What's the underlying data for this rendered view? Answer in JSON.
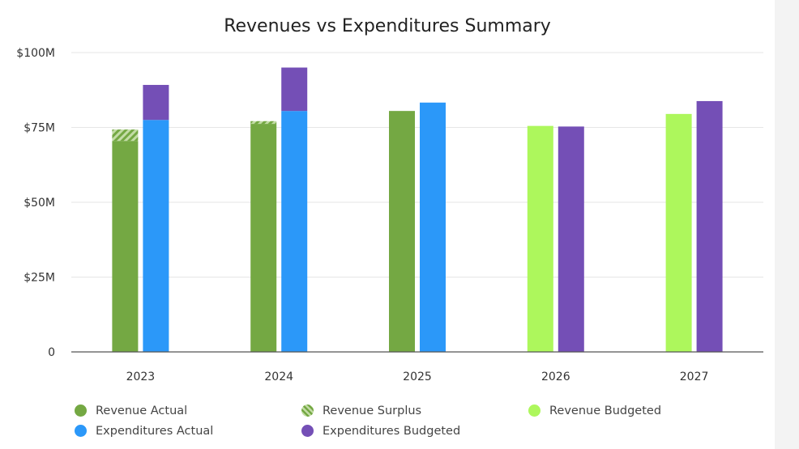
{
  "chart_data": {
    "type": "bar",
    "title": "Revenues vs Expenditures Summary",
    "xlabel": "",
    "ylabel": "",
    "ylim": [
      0,
      100000000
    ],
    "yticks": [
      {
        "value": 0,
        "label": "0"
      },
      {
        "value": 25000000,
        "label": "$25M"
      },
      {
        "value": 50000000,
        "label": "$50M"
      },
      {
        "value": 75000000,
        "label": "$75M"
      },
      {
        "value": 100000000,
        "label": "$100M"
      }
    ],
    "categories": [
      "2023",
      "2024",
      "2025",
      "2026",
      "2027"
    ],
    "grid": true,
    "legend_position": "bottom",
    "stacked_groups": true,
    "series": [
      {
        "name": "Revenue Actual",
        "color": "#74a843",
        "group": "revenue",
        "values": [
          70500000,
          76200000,
          80500000,
          null,
          null
        ]
      },
      {
        "name": "Revenue Surplus",
        "color": "#74a843",
        "pattern": "hatch",
        "group": "revenue",
        "values": [
          3800000,
          900000,
          null,
          null,
          null
        ]
      },
      {
        "name": "Revenue Budgeted",
        "color": "#adf75c",
        "group": "revenue",
        "values": [
          null,
          null,
          null,
          75500000,
          79500000
        ]
      },
      {
        "name": "Expenditures Actual",
        "color": "#2b98f9",
        "group": "expenditures",
        "values": [
          77500000,
          80500000,
          83300000,
          null,
          null
        ]
      },
      {
        "name": "Expenditures Budgeted",
        "color": "#744fb6",
        "group": "expenditures",
        "values": [
          11700000,
          14500000,
          null,
          75300000,
          83800000
        ]
      }
    ]
  },
  "legend": [
    {
      "label": "Revenue Actual",
      "color": "#74a843",
      "pattern": "solid"
    },
    {
      "label": "Revenue Surplus",
      "color": "#74a843",
      "pattern": "hatch"
    },
    {
      "label": "Revenue Budgeted",
      "color": "#adf75c",
      "pattern": "solid"
    },
    {
      "label": "Expenditures Actual",
      "color": "#2b98f9",
      "pattern": "solid"
    },
    {
      "label": "Expenditures Budgeted",
      "color": "#744fb6",
      "pattern": "solid"
    }
  ]
}
